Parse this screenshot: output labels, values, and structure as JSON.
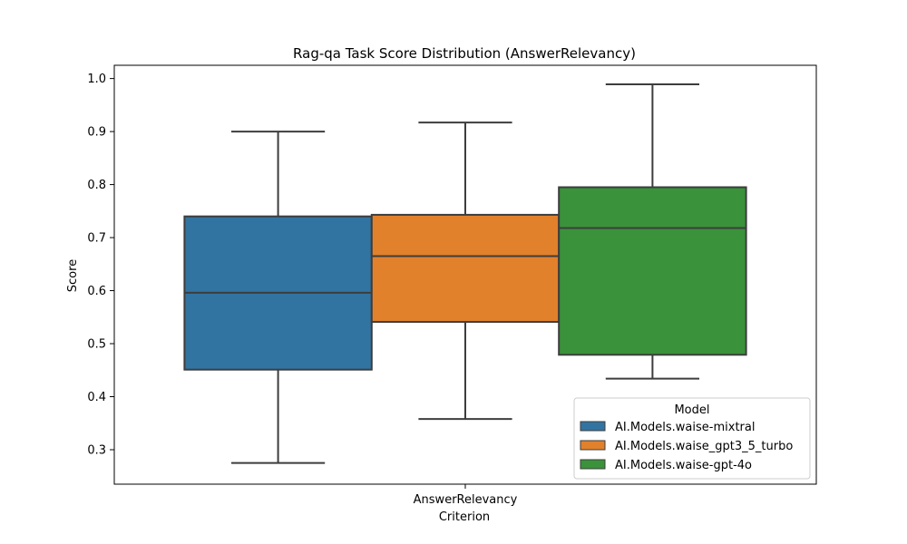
{
  "chart_data": {
    "type": "box",
    "title": "Rag-qa Task Score Distribution (AnswerRelevancy)",
    "xlabel": "Criterion",
    "ylabel": "Score",
    "categories": [
      "AnswerRelevancy"
    ],
    "ylim": [
      0.235,
      1.025
    ],
    "yticks": [
      0.3,
      0.4,
      0.5,
      0.6,
      0.7,
      0.8,
      0.9,
      1.0
    ],
    "ytick_labels": [
      "0.3",
      "0.4",
      "0.5",
      "0.6",
      "0.7",
      "0.8",
      "0.9",
      "1.0"
    ],
    "grid": false,
    "legend": {
      "title": "Model",
      "position": "lower-right"
    },
    "series": [
      {
        "name": "AI.Models.waise-mixtral",
        "color": "#3274a1",
        "whisker_low": 0.275,
        "q1": 0.451,
        "median": 0.596,
        "q3": 0.74,
        "whisker_high": 0.9
      },
      {
        "name": "AI.Models.waise_gpt3_5_turbo",
        "color": "#e1812c",
        "whisker_low": 0.358,
        "q1": 0.541,
        "median": 0.665,
        "q3": 0.743,
        "whisker_high": 0.917
      },
      {
        "name": "AI.Models.waise-gpt-4o",
        "color": "#3a923a",
        "whisker_low": 0.434,
        "q1": 0.479,
        "median": 0.718,
        "q3": 0.795,
        "whisker_high": 0.989
      }
    ]
  }
}
